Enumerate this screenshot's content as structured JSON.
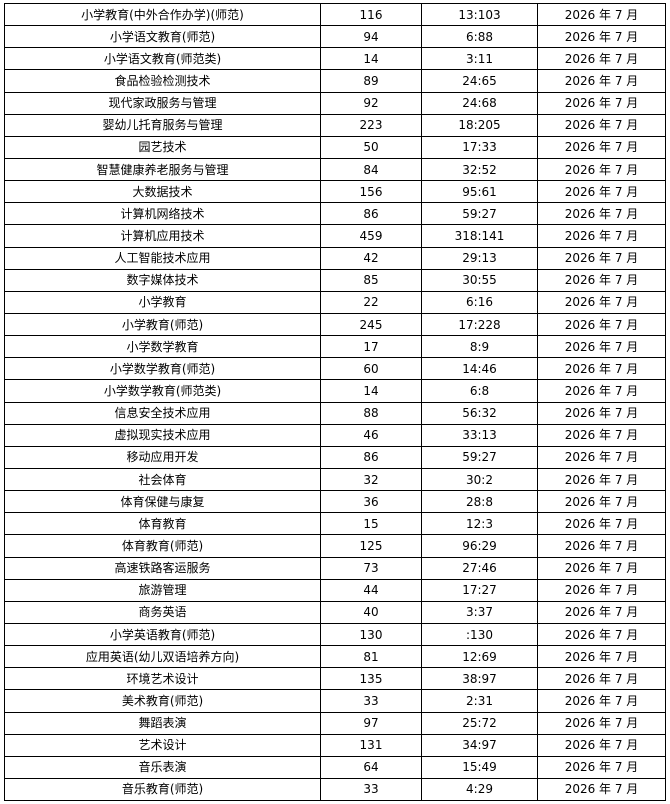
{
  "table": {
    "rows": [
      [
        "小学教育(中外合作办学)(师范)",
        "116",
        "13:103",
        "2026 年 7 月"
      ],
      [
        "小学语文教育(师范)",
        "94",
        "6:88",
        "2026 年 7 月"
      ],
      [
        "小学语文教育(师范类)",
        "14",
        "3:11",
        "2026 年 7 月"
      ],
      [
        "食品检验检测技术",
        "89",
        "24:65",
        "2026 年 7 月"
      ],
      [
        "现代家政服务与管理",
        "92",
        "24:68",
        "2026 年 7 月"
      ],
      [
        "婴幼儿托育服务与管理",
        "223",
        "18:205",
        "2026 年 7 月"
      ],
      [
        "园艺技术",
        "50",
        "17:33",
        "2026 年 7 月"
      ],
      [
        "智慧健康养老服务与管理",
        "84",
        "32:52",
        "2026 年 7 月"
      ],
      [
        "大数据技术",
        "156",
        "95:61",
        "2026 年 7 月"
      ],
      [
        "计算机网络技术",
        "86",
        "59:27",
        "2026 年 7 月"
      ],
      [
        "计算机应用技术",
        "459",
        "318:141",
        "2026 年 7 月"
      ],
      [
        "人工智能技术应用",
        "42",
        "29:13",
        "2026 年 7 月"
      ],
      [
        "数字媒体技术",
        "85",
        "30:55",
        "2026 年 7 月"
      ],
      [
        "小学教育",
        "22",
        "6:16",
        "2026 年 7 月"
      ],
      [
        "小学教育(师范)",
        "245",
        "17:228",
        "2026 年 7 月"
      ],
      [
        "小学数学教育",
        "17",
        "8:9",
        "2026 年 7 月"
      ],
      [
        "小学数学教育(师范)",
        "60",
        "14:46",
        "2026 年 7 月"
      ],
      [
        "小学数学教育(师范类)",
        "14",
        "6:8",
        "2026 年 7 月"
      ],
      [
        "信息安全技术应用",
        "88",
        "56:32",
        "2026 年 7 月"
      ],
      [
        "虚拟现实技术应用",
        "46",
        "33:13",
        "2026 年 7 月"
      ],
      [
        "移动应用开发",
        "86",
        "59:27",
        "2026 年 7 月"
      ],
      [
        "社会体育",
        "32",
        "30:2",
        "2026 年 7 月"
      ],
      [
        "体育保健与康复",
        "36",
        "28:8",
        "2026 年 7 月"
      ],
      [
        "体育教育",
        "15",
        "12:3",
        "2026 年 7 月"
      ],
      [
        "体育教育(师范)",
        "125",
        "96:29",
        "2026 年 7 月"
      ],
      [
        "高速铁路客运服务",
        "73",
        "27:46",
        "2026 年 7 月"
      ],
      [
        "旅游管理",
        "44",
        "17:27",
        "2026 年 7 月"
      ],
      [
        "商务英语",
        "40",
        "3:37",
        "2026 年 7 月"
      ],
      [
        "小学英语教育(师范)",
        "130",
        ":130",
        "2026 年 7 月"
      ],
      [
        "应用英语(幼儿双语培养方向)",
        "81",
        "12:69",
        "2026 年 7 月"
      ],
      [
        "环境艺术设计",
        "135",
        "38:97",
        "2026 年 7 月"
      ],
      [
        "美术教育(师范)",
        "33",
        "2:31",
        "2026 年 7 月"
      ],
      [
        "舞蹈表演",
        "97",
        "25:72",
        "2026 年 7 月"
      ],
      [
        "艺术设计",
        "131",
        "34:97",
        "2026 年 7 月"
      ],
      [
        "音乐表演",
        "64",
        "15:49",
        "2026 年 7 月"
      ],
      [
        "音乐教育(师范)",
        "33",
        "4:29",
        "2026 年 7 月"
      ]
    ]
  }
}
